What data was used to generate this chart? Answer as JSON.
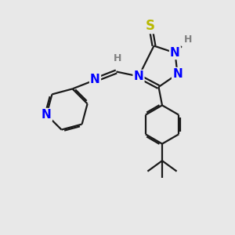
{
  "bg_color": "#e8e8e8",
  "bond_color": "#1a1a1a",
  "N_color": "#0000ff",
  "S_color": "#b8b800",
  "H_color": "#808080",
  "line_width": 1.6,
  "fig_width": 3.0,
  "fig_height": 3.0,
  "dpi": 100,
  "xlim": [
    0,
    10
  ],
  "ylim": [
    0,
    10
  ]
}
